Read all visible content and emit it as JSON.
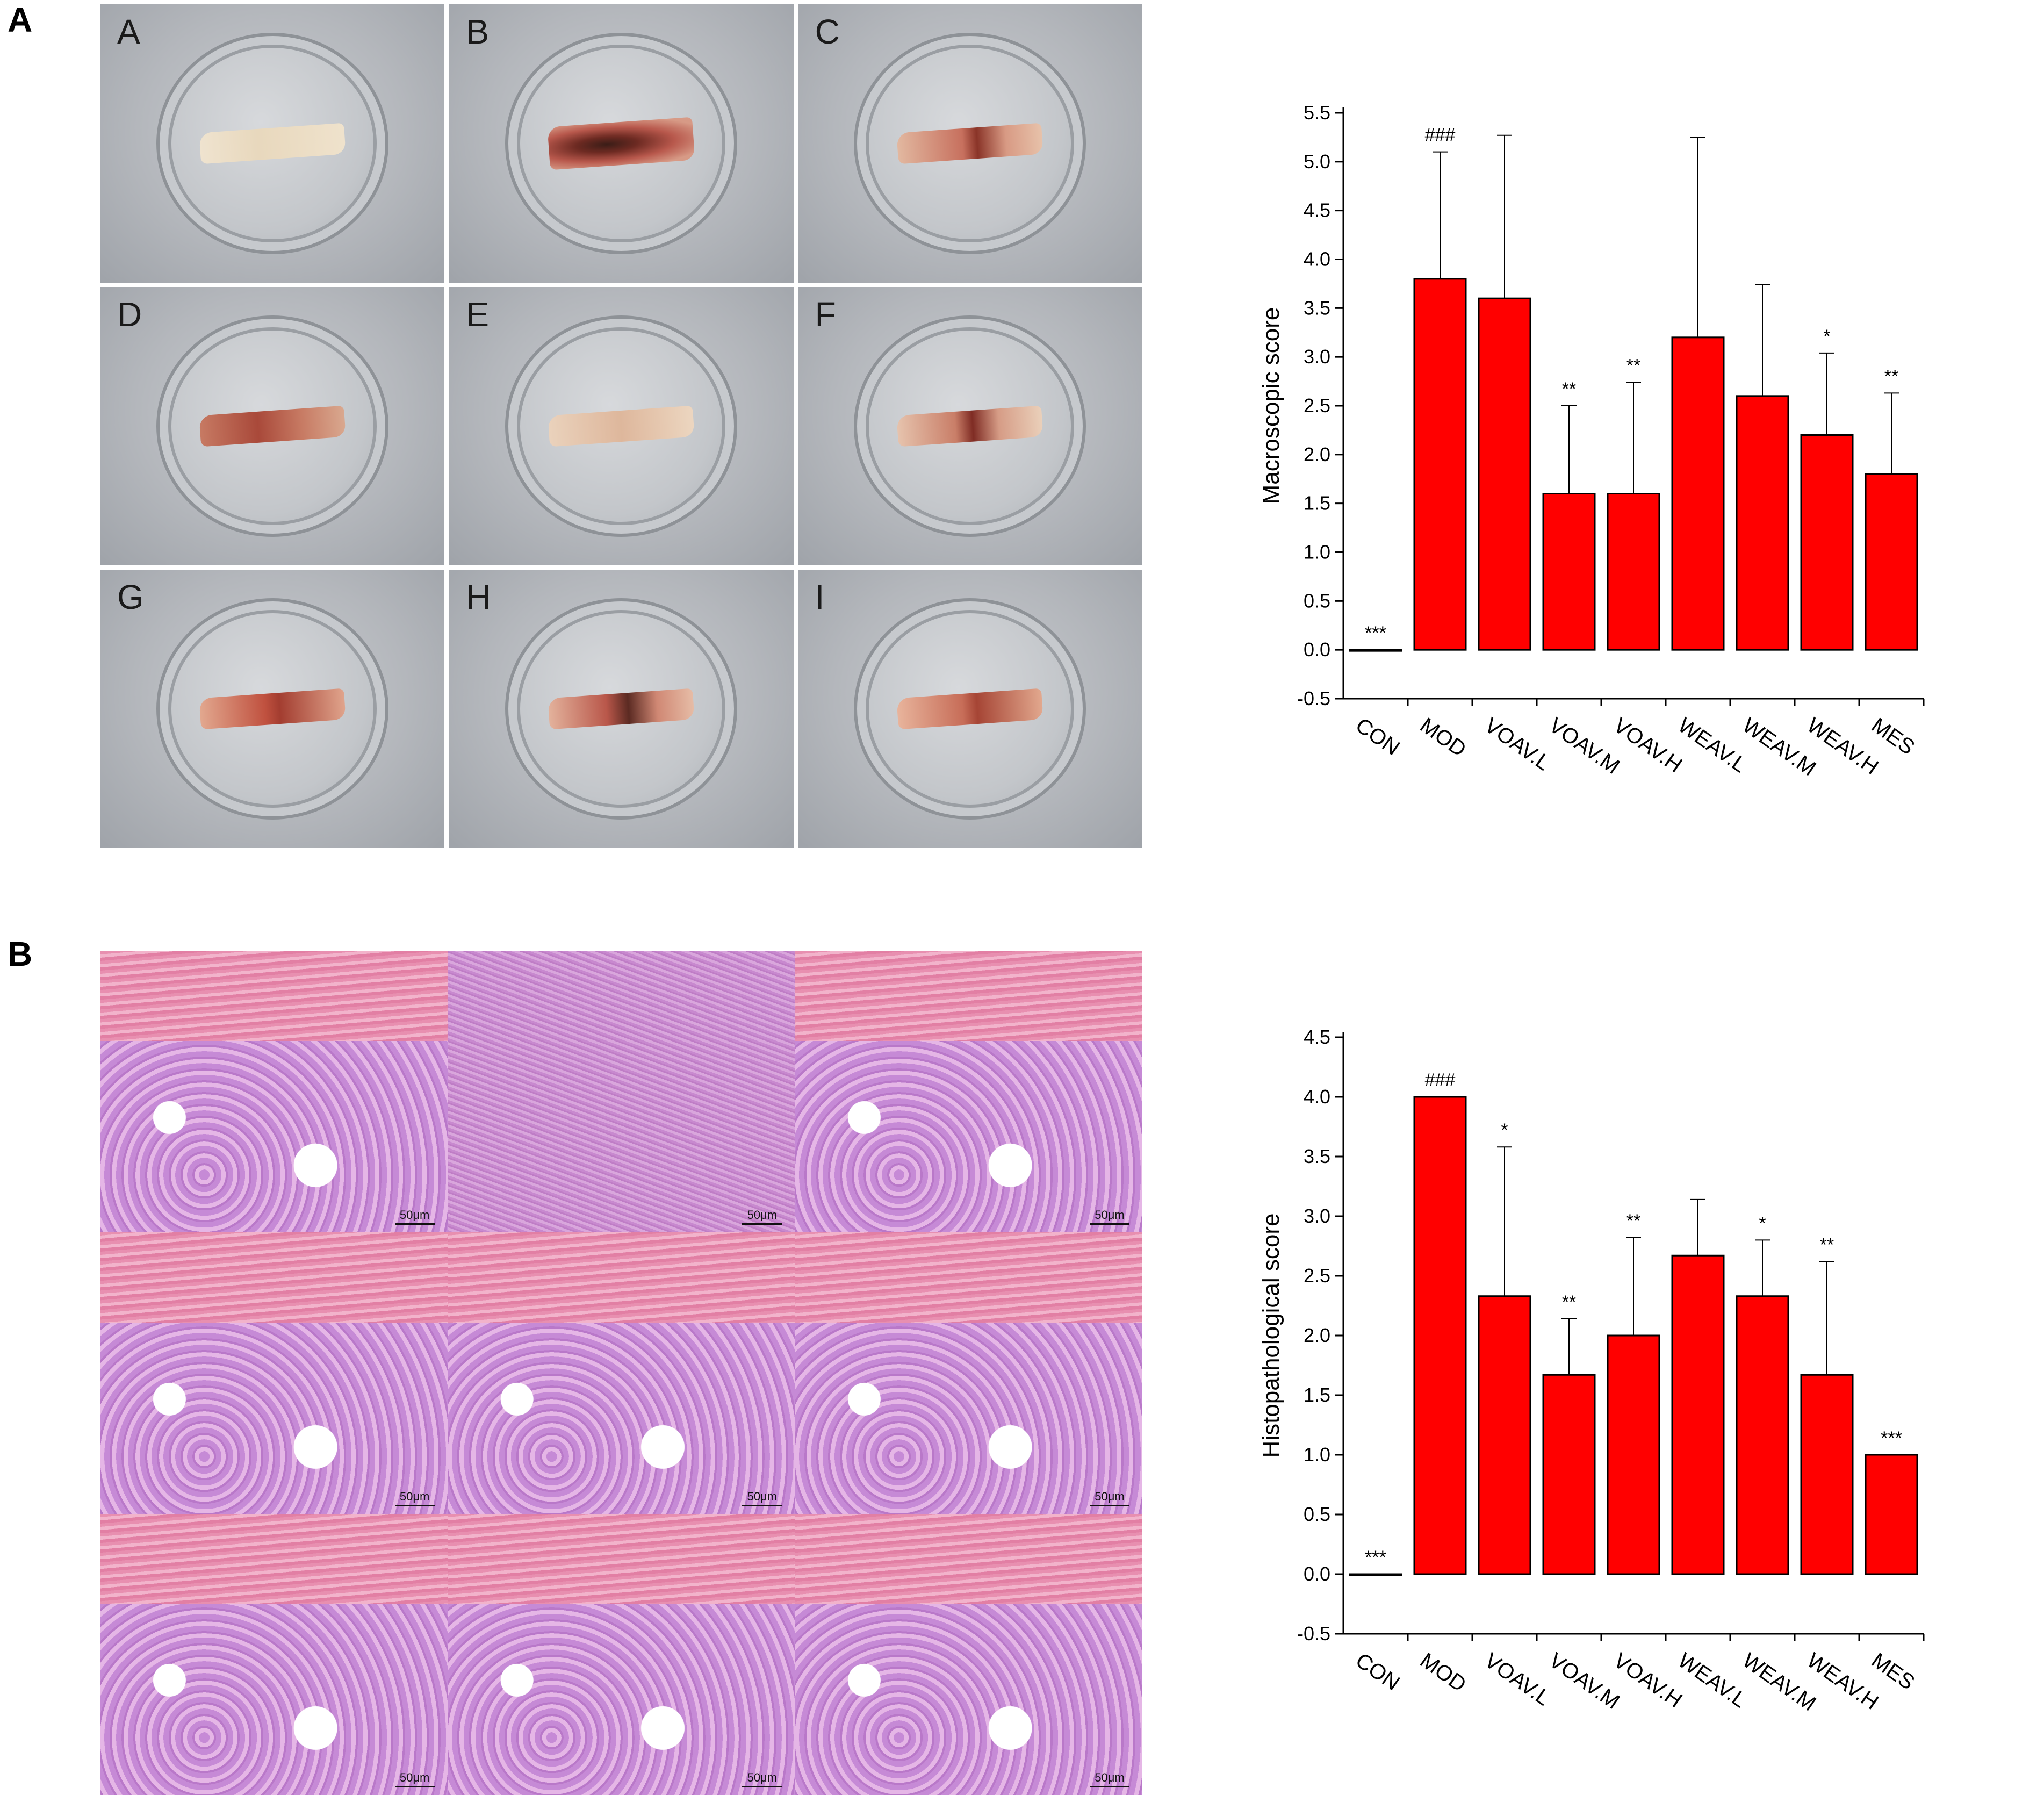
{
  "panel_labels": {
    "a": "A",
    "b": "B"
  },
  "photo_grid": {
    "letters": [
      "A",
      "B",
      "C",
      "D",
      "E",
      "F",
      "G",
      "H",
      "I"
    ]
  },
  "histology_grid": {
    "scale_bar": "50μm"
  },
  "colors": {
    "bar_fill": "#ff0000",
    "bar_stroke": "#000000"
  },
  "chart_data": [
    {
      "type": "bar",
      "ylabel": "Macroscopic score",
      "xlabel": "",
      "ylim": [
        -0.5,
        5.5
      ],
      "yticks": [
        "-0.5",
        "0.0",
        "0.5",
        "1.0",
        "1.5",
        "2.0",
        "2.5",
        "3.0",
        "3.5",
        "4.0",
        "4.5",
        "5.0",
        "5.5"
      ],
      "categories": [
        "CON",
        "MOD",
        "VOAV.L",
        "VOAV.M",
        "VOAV.H",
        "WEAV.L",
        "WEAV.M",
        "WEAV.H",
        "MES"
      ],
      "values": [
        0.0,
        3.8,
        3.6,
        1.6,
        1.6,
        3.2,
        2.6,
        2.2,
        1.8
      ],
      "error_upper": [
        null,
        5.1,
        5.27,
        2.5,
        2.74,
        5.25,
        3.74,
        3.04,
        2.63
      ],
      "annotations": [
        "***",
        "###",
        "",
        "**",
        "**",
        "",
        "",
        "*",
        "**"
      ]
    },
    {
      "type": "bar",
      "ylabel": "Histopathological score",
      "xlabel": "",
      "ylim": [
        -0.5,
        4.5
      ],
      "yticks": [
        "-0.5",
        "0.0",
        "0.5",
        "1.0",
        "1.5",
        "2.0",
        "2.5",
        "3.0",
        "3.5",
        "4.0",
        "4.5"
      ],
      "categories": [
        "CON",
        "MOD",
        "VOAV.L",
        "VOAV.M",
        "VOAV.H",
        "WEAV.L",
        "WEAV.M",
        "WEAV.H",
        "MES"
      ],
      "values": [
        0.0,
        4.0,
        2.33,
        1.67,
        2.0,
        2.67,
        2.33,
        1.67,
        1.0
      ],
      "error_upper": [
        null,
        null,
        3.58,
        2.14,
        2.82,
        3.14,
        2.8,
        2.62,
        null
      ],
      "annotations": [
        "***",
        "###",
        "*",
        "**",
        "**",
        "",
        "*",
        "**",
        "***"
      ]
    }
  ]
}
